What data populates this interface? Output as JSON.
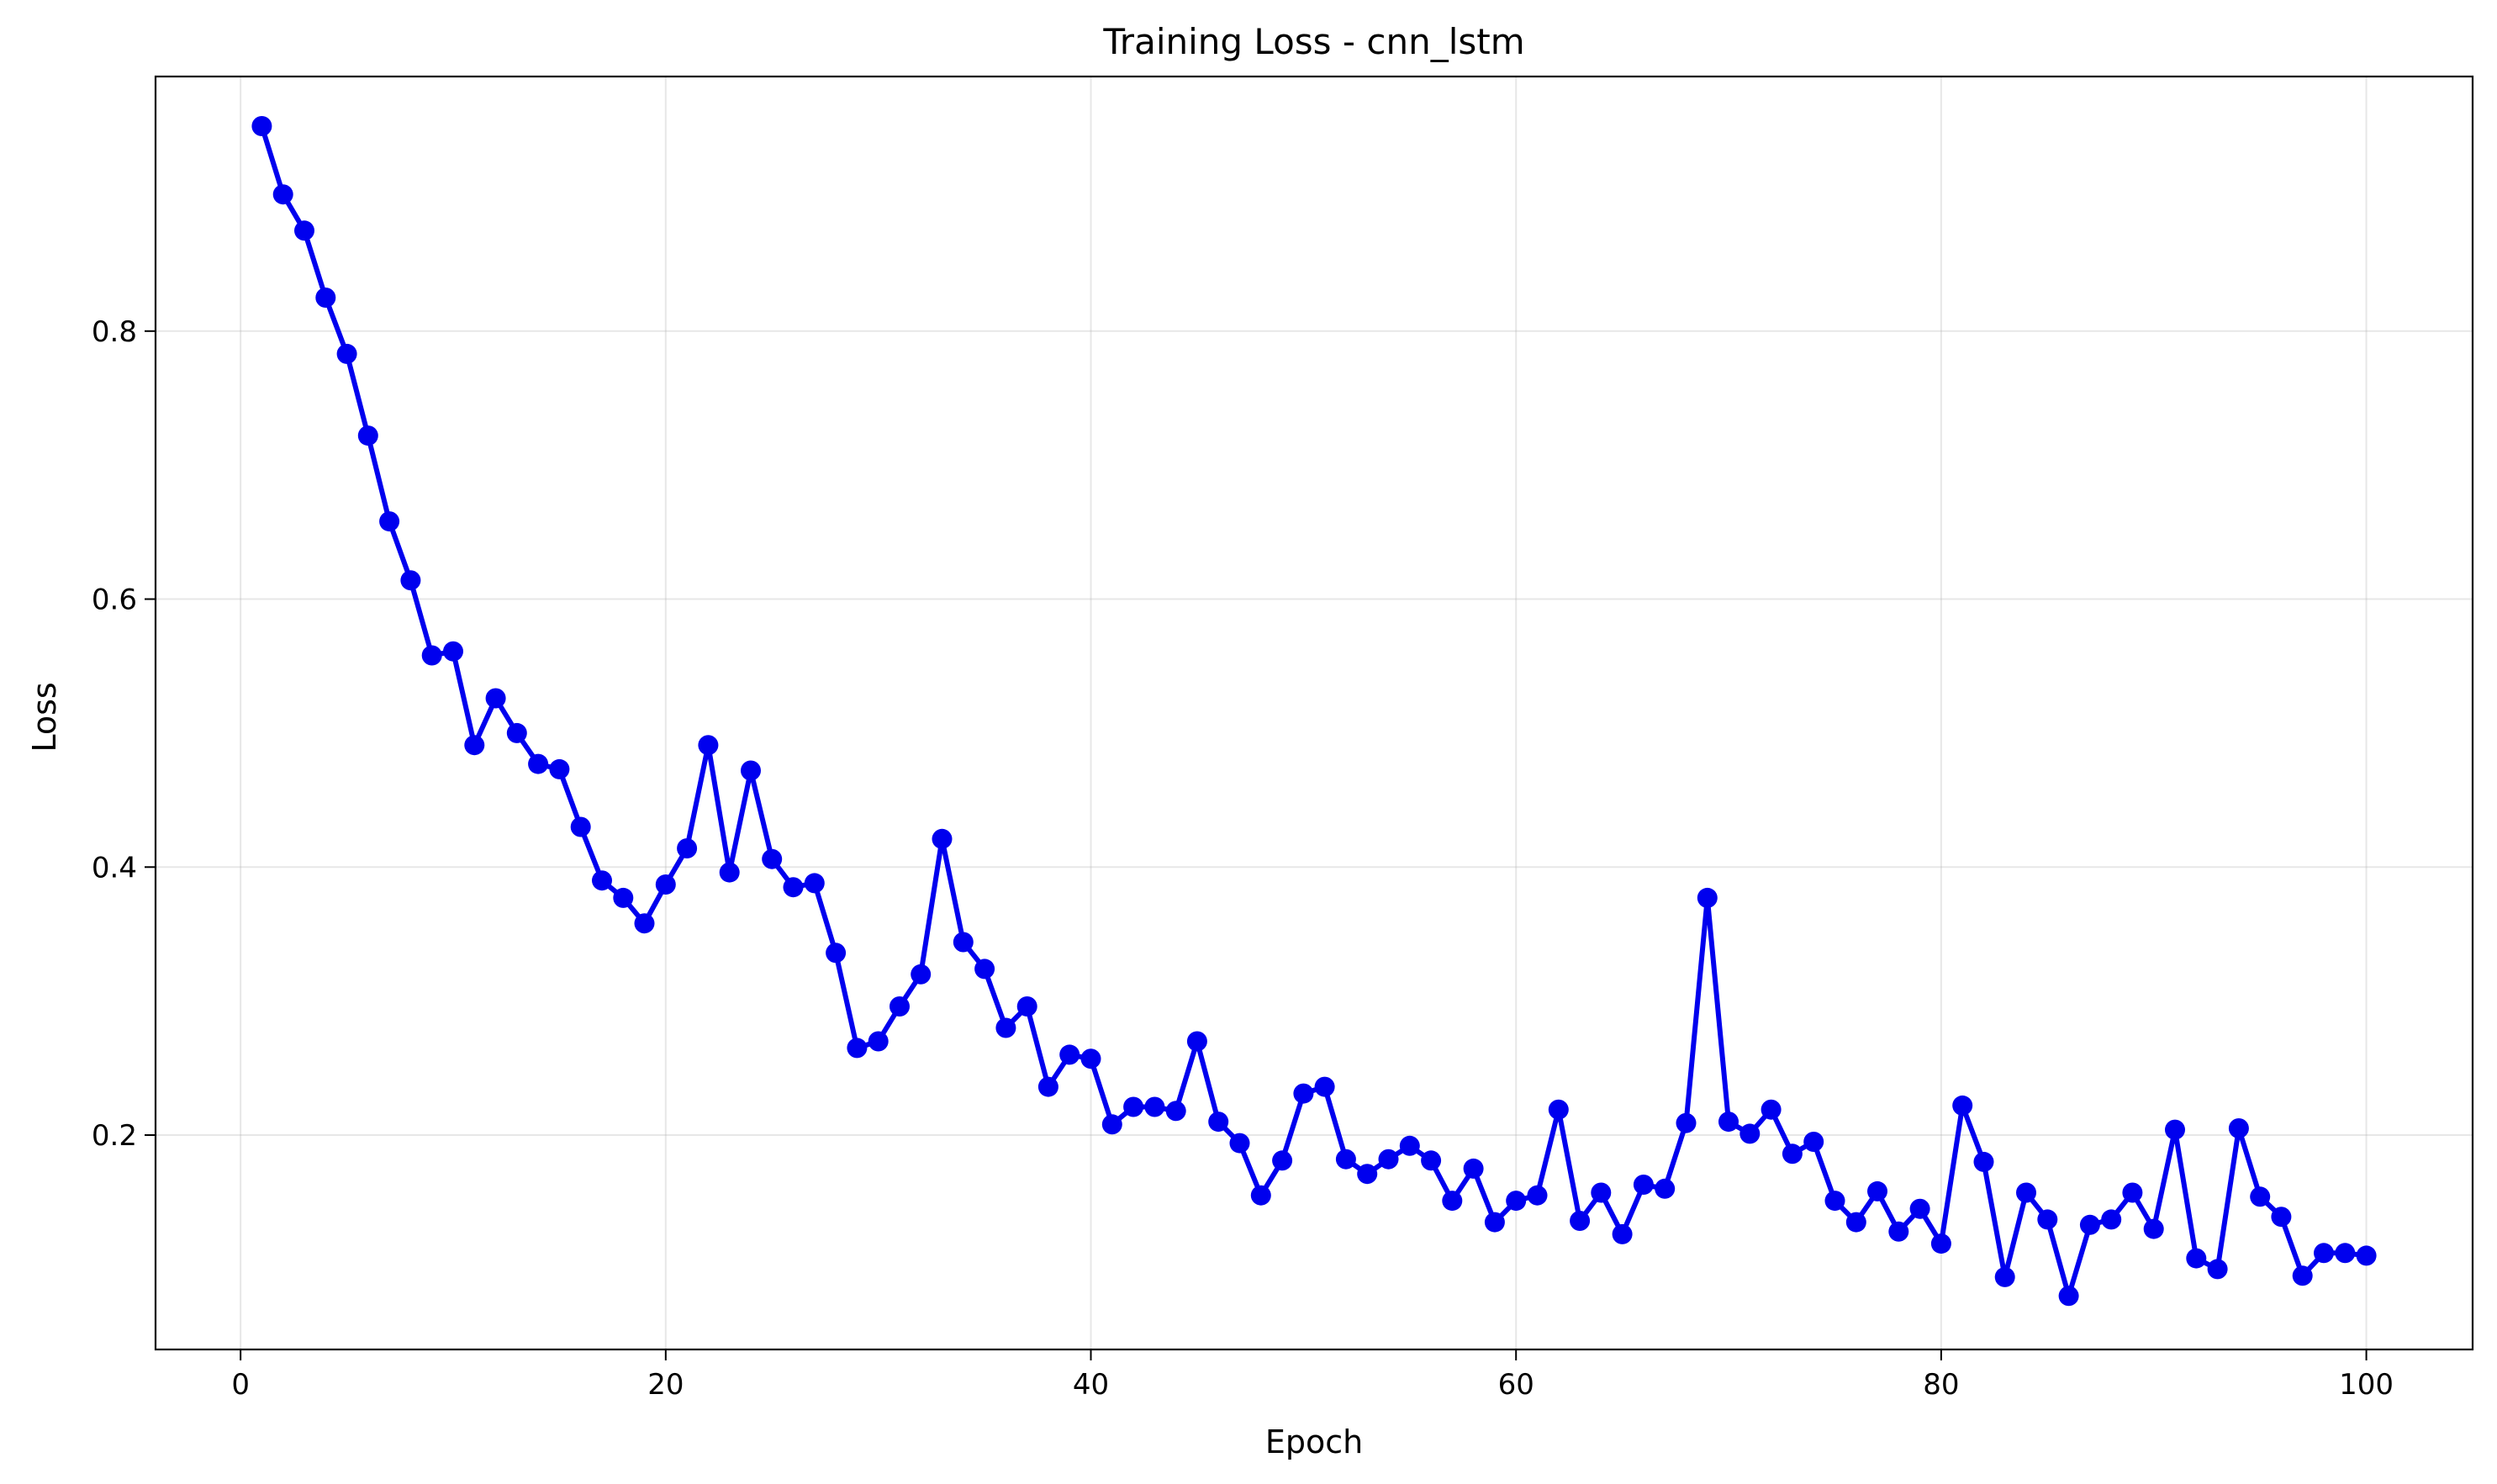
{
  "chart_data": {
    "type": "line",
    "title": "Training Loss - cnn_lstm",
    "xlabel": "Epoch",
    "ylabel": "Loss",
    "xlim": [
      -4,
      105
    ],
    "ylim": [
      0.04,
      0.99
    ],
    "grid": true,
    "xticks": [
      0,
      20,
      40,
      60,
      80,
      100
    ],
    "xtick_labels": [
      "0",
      "20",
      "40",
      "60",
      "80",
      "100"
    ],
    "yticks": [
      0.2,
      0.4,
      0.6,
      0.8
    ],
    "ytick_labels": [
      "0.2",
      "0.4",
      "0.6",
      "0.8"
    ],
    "marker": "circle",
    "series": [
      {
        "color": "#0000ee",
        "x": [
          1,
          2,
          3,
          4,
          5,
          6,
          7,
          8,
          9,
          10,
          11,
          12,
          13,
          14,
          15,
          16,
          17,
          18,
          19,
          20,
          21,
          22,
          23,
          24,
          25,
          26,
          27,
          28,
          29,
          30,
          31,
          32,
          33,
          34,
          35,
          36,
          37,
          38,
          39,
          40,
          41,
          42,
          43,
          44,
          45,
          46,
          47,
          48,
          49,
          50,
          51,
          52,
          53,
          54,
          55,
          56,
          57,
          58,
          59,
          60,
          61,
          62,
          63,
          64,
          65,
          66,
          67,
          68,
          69,
          70,
          71,
          72,
          73,
          74,
          75,
          76,
          77,
          78,
          79,
          80,
          81,
          82,
          83,
          84,
          85,
          86,
          87,
          88,
          89,
          90,
          91,
          92,
          93,
          94,
          95,
          96,
          97,
          98,
          99,
          100
        ],
        "y": [
          0.953,
          0.902,
          0.875,
          0.825,
          0.783,
          0.722,
          0.658,
          0.614,
          0.558,
          0.561,
          0.491,
          0.526,
          0.5,
          0.477,
          0.473,
          0.43,
          0.39,
          0.377,
          0.358,
          0.387,
          0.414,
          0.491,
          0.396,
          0.472,
          0.406,
          0.385,
          0.388,
          0.336,
          0.265,
          0.27,
          0.296,
          0.32,
          0.421,
          0.344,
          0.324,
          0.28,
          0.296,
          0.236,
          0.26,
          0.257,
          0.208,
          0.221,
          0.221,
          0.218,
          0.27,
          0.21,
          0.194,
          0.155,
          0.181,
          0.231,
          0.236,
          0.182,
          0.171,
          0.182,
          0.192,
          0.181,
          0.151,
          0.175,
          0.135,
          0.151,
          0.155,
          0.219,
          0.136,
          0.157,
          0.126,
          0.163,
          0.16,
          0.209,
          0.377,
          0.21,
          0.201,
          0.219,
          0.186,
          0.195,
          0.151,
          0.135,
          0.158,
          0.128,
          0.145,
          0.119,
          0.222,
          0.18,
          0.094,
          0.157,
          0.137,
          0.08,
          0.133,
          0.137,
          0.157,
          0.13,
          0.204,
          0.108,
          0.1,
          0.205,
          0.154,
          0.139,
          0.095,
          0.112,
          0.112,
          0.11
        ]
      }
    ]
  }
}
